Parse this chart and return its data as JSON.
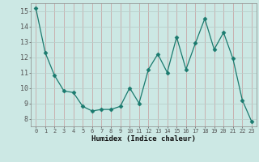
{
  "x": [
    0,
    1,
    2,
    3,
    4,
    5,
    6,
    7,
    8,
    9,
    10,
    11,
    12,
    13,
    14,
    15,
    16,
    17,
    18,
    19,
    20,
    21,
    22,
    23
  ],
  "y": [
    15.2,
    12.3,
    10.8,
    9.8,
    9.7,
    8.8,
    8.5,
    8.6,
    8.6,
    8.8,
    10.0,
    9.0,
    11.2,
    12.2,
    11.0,
    13.3,
    11.2,
    12.9,
    14.5,
    12.5,
    13.6,
    11.9,
    9.2,
    7.8
  ],
  "xlabel": "Humidex (Indice chaleur)",
  "line_color": "#1a7a6e",
  "marker": "D",
  "marker_size": 2.5,
  "bg_color": "#cce8e4",
  "grid_color_major": "#b8d4d0",
  "grid_color_minor": "#ddecea",
  "tick_label_color": "#111111",
  "ylim": [
    7.5,
    15.5
  ],
  "xlim": [
    -0.5,
    23.5
  ],
  "yticks": [
    8,
    9,
    10,
    11,
    12,
    13,
    14,
    15
  ],
  "xticks": [
    0,
    1,
    2,
    3,
    4,
    5,
    6,
    7,
    8,
    9,
    10,
    11,
    12,
    13,
    14,
    15,
    16,
    17,
    18,
    19,
    20,
    21,
    22,
    23
  ]
}
